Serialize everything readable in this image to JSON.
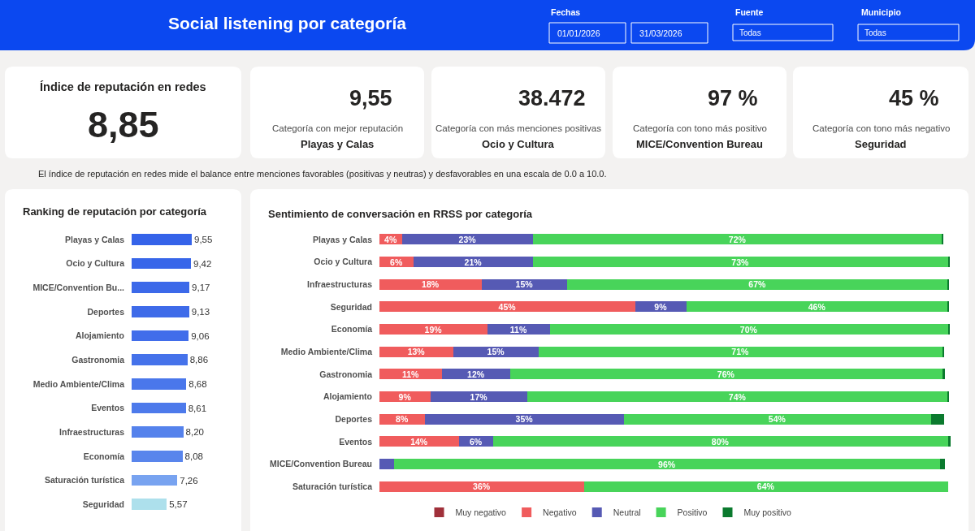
{
  "chart_data": [
    {
      "type": "other",
      "title": "Social listening por categoría",
      "annotations": [
        "Fechas",
        "01/01/2026",
        "31/03/2026",
        "Fuente",
        "Todas",
        "Municipio",
        "Todas"
      ]
    },
    {
      "type": "other",
      "title": "Índice de reputación en redes",
      "annotations": [
        "8,85"
      ]
    },
    {
      "type": "other",
      "annotations": [
        "9,55",
        "Categoría con mejor reputación",
        "Playas y Calas"
      ]
    },
    {
      "type": "other",
      "annotations": [
        "38.472",
        "Categoría con más menciones positivas",
        "Ocio y Cultura"
      ]
    },
    {
      "type": "other",
      "annotations": [
        "97 %",
        "Categoría con tono más positivo",
        "MICE/Convention Bureau"
      ]
    },
    {
      "type": "other",
      "annotations": [
        "45 %",
        "Categoría con tono más negativo",
        "Seguridad"
      ]
    },
    {
      "type": "other",
      "annotations": [
        "El índice de reputación en redes mide el balance entre menciones favorables (positivas y neutras) y desfavorables en una escala de 0.0 a 10.0."
      ]
    },
    {
      "type": "bar",
      "orientation": "horizontal",
      "title": "Ranking de reputación por categoría",
      "tick_labels": "y",
      "categories": [
        "Playas y Calas",
        "Ocio y Cultura",
        "MICE/Convention Bu...",
        "Deportes",
        "Alojamiento",
        "Gastronomia",
        "Medio Ambiente/Clima",
        "Eventos",
        "Infraestructuras",
        "Economía",
        "Saturación turística",
        "Seguridad"
      ],
      "values": [
        9.55,
        9.42,
        9.17,
        9.13,
        9.06,
        8.86,
        8.68,
        8.61,
        8.2,
        8.08,
        7.26,
        5.57
      ],
      "value_labels": [
        "9,55",
        "9,42",
        "9,17",
        "9,13",
        "9,06",
        "8,86",
        "8,68",
        "8,61",
        "8,20",
        "8,08",
        "7,26",
        "5,57"
      ],
      "colors": [
        "#3563e9",
        "#3866e9",
        "#3c69e9",
        "#3e6be9",
        "#416dea",
        "#4572ea",
        "#4a77eb",
        "#4d7aeb",
        "#5582ec",
        "#5985ec",
        "#78a3f0",
        "#ade0ec"
      ]
    },
    {
      "type": "bar",
      "orientation": "horizontal",
      "stacked": true,
      "title": "Sentimiento de conversación en RRSS por categoría",
      "tick_labels": "y",
      "legend": "bottom",
      "categories": [
        "Playas y Calas",
        "Ocio y Cultura",
        "Infraestructuras",
        "Seguridad",
        "Economía",
        "Medio Ambiente/Clima",
        "Gastronomia",
        "Alojamiento",
        "Deportes",
        "Eventos",
        "MICE/Convention Bureau",
        "Saturación turística"
      ],
      "series": [
        {
          "name": "Muy negativo",
          "color": "#a0303a",
          "values": [
            null,
            null,
            null,
            null,
            null,
            null,
            null,
            null,
            null,
            null,
            null,
            null
          ]
        },
        {
          "name": "Negativo",
          "color": "#f05c5d",
          "values": [
            4,
            6,
            18,
            45,
            19,
            13,
            11,
            9,
            8,
            14,
            null,
            36
          ],
          "value_labels": [
            "4%",
            "6%",
            "18%",
            "45%",
            "19%",
            "13%",
            "11%",
            "9%",
            "8%",
            "14%",
            null,
            "36%"
          ]
        },
        {
          "name": "Neutral",
          "color": "#565ab4",
          "values": [
            23,
            21,
            15,
            9,
            11,
            15,
            12,
            17,
            35,
            6,
            2.6,
            null
          ],
          "value_labels": [
            "23%",
            "21%",
            "15%",
            "9%",
            "11%",
            "15%",
            "12%",
            "17%",
            "35%",
            "6%",
            null,
            null
          ]
        },
        {
          "name": "Positivo",
          "color": "#48d45a",
          "values": [
            72,
            73,
            67,
            46,
            70,
            71,
            76,
            74,
            54,
            80,
            96,
            64
          ],
          "value_labels": [
            "72%",
            "73%",
            "67%",
            "46%",
            "70%",
            "71%",
            "76%",
            "74%",
            "54%",
            "80%",
            "96%",
            "64%"
          ]
        },
        {
          "name": "Muy positivo",
          "color": "#0b7a2e",
          "values": [
            0.2,
            0.3,
            0.1,
            0.1,
            0.3,
            0.3,
            0.5,
            0.2,
            2.4,
            0.5,
            0.9,
            null
          ]
        }
      ]
    }
  ]
}
